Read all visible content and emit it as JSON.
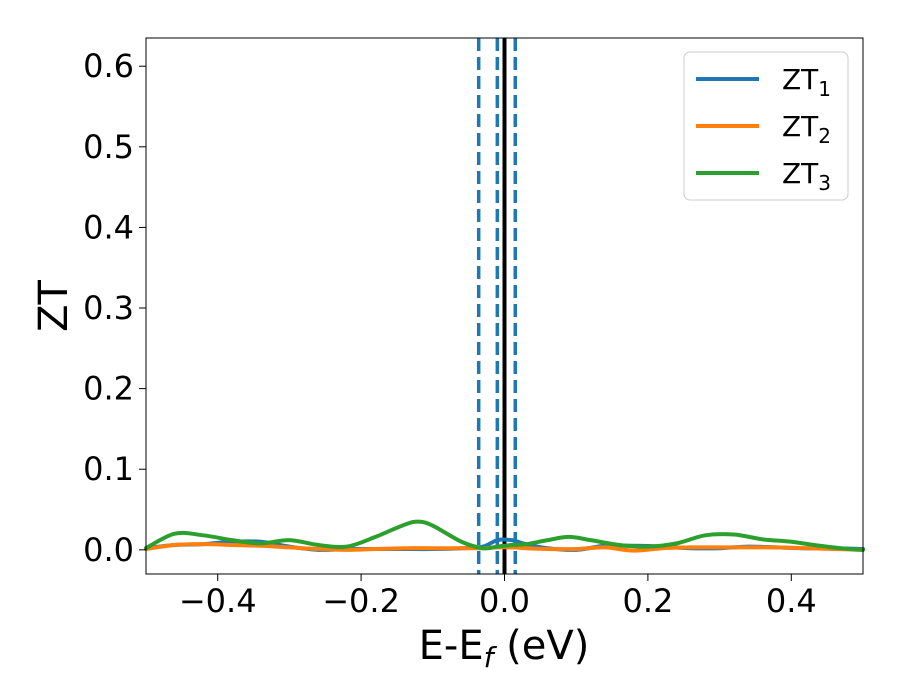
{
  "chart_data": {
    "type": "line",
    "xlabel": {
      "main": "E-E",
      "sub": "f",
      "tail": " (eV)"
    },
    "ylabel": "ZT",
    "xlim": [
      -0.5,
      0.5
    ],
    "ylim": [
      -0.03,
      0.635
    ],
    "x_ticks": [
      -0.4,
      -0.2,
      0.0,
      0.2,
      0.4
    ],
    "x_tick_labels": [
      "−0.4",
      "−0.2",
      "0.0",
      "0.2",
      "0.4"
    ],
    "y_ticks": [
      0.0,
      0.1,
      0.2,
      0.3,
      0.4,
      0.5,
      0.6
    ],
    "y_tick_labels": [
      "0.0",
      "0.1",
      "0.2",
      "0.3",
      "0.4",
      "0.5",
      "0.6"
    ],
    "grid": false,
    "legend_position": "top-right",
    "series": [
      {
        "name": "ZT",
        "name_sub": "1",
        "color": "#1f77b4",
        "x": [
          -0.5,
          -0.46,
          -0.42,
          -0.38,
          -0.34,
          -0.3,
          -0.26,
          -0.22,
          -0.18,
          -0.14,
          -0.1,
          -0.06,
          -0.03,
          -0.01,
          0.01,
          0.03,
          0.06,
          0.1,
          0.14,
          0.18,
          0.22,
          0.26,
          0.3,
          0.34,
          0.38,
          0.42,
          0.46,
          0.5
        ],
        "y": [
          0.002,
          0.006,
          0.007,
          0.01,
          0.01,
          0.004,
          0.0,
          0.001,
          0.001,
          0.001,
          0.001,
          0.002,
          0.004,
          0.012,
          0.012,
          0.007,
          0.002,
          0.0,
          0.005,
          0.005,
          0.004,
          0.002,
          0.002,
          0.004,
          0.003,
          0.002,
          0.002,
          0.001
        ]
      },
      {
        "name": "ZT",
        "name_sub": "2",
        "color": "#ff7f0e",
        "x": [
          -0.5,
          -0.46,
          -0.42,
          -0.38,
          -0.34,
          -0.3,
          -0.26,
          -0.22,
          -0.18,
          -0.14,
          -0.1,
          -0.06,
          -0.03,
          -0.01,
          0.01,
          0.03,
          0.06,
          0.1,
          0.14,
          0.18,
          0.22,
          0.26,
          0.3,
          0.34,
          0.38,
          0.42,
          0.46,
          0.5
        ],
        "y": [
          0.001,
          0.006,
          0.007,
          0.006,
          0.005,
          0.003,
          0.001,
          0.0,
          0.001,
          0.002,
          0.002,
          0.002,
          0.002,
          0.003,
          0.003,
          0.002,
          0.001,
          0.001,
          0.003,
          -0.001,
          0.002,
          0.003,
          0.003,
          0.003,
          0.003,
          0.002,
          0.001,
          0.0
        ]
      },
      {
        "name": "ZT",
        "name_sub": "3",
        "color": "#2ca02c",
        "x": [
          -0.5,
          -0.46,
          -0.42,
          -0.38,
          -0.34,
          -0.3,
          -0.26,
          -0.22,
          -0.18,
          -0.14,
          -0.12,
          -0.1,
          -0.06,
          -0.03,
          -0.01,
          0.01,
          0.03,
          0.06,
          0.09,
          0.12,
          0.16,
          0.2,
          0.24,
          0.28,
          0.32,
          0.36,
          0.4,
          0.44,
          0.48,
          0.5
        ],
        "y": [
          0.002,
          0.02,
          0.018,
          0.012,
          0.008,
          0.012,
          0.006,
          0.004,
          0.016,
          0.031,
          0.035,
          0.03,
          0.01,
          0.002,
          0.004,
          0.006,
          0.007,
          0.012,
          0.016,
          0.012,
          0.006,
          0.004,
          0.008,
          0.018,
          0.019,
          0.013,
          0.01,
          0.005,
          0.001,
          0.0
        ]
      }
    ],
    "vertical_lines": [
      {
        "x": -0.036,
        "color": "#1f77b4",
        "style": "dashed"
      },
      {
        "x": -0.01,
        "color": "#1f77b4",
        "style": "dashed"
      },
      {
        "x": 0.015,
        "color": "#1f77b4",
        "style": "dashed"
      },
      {
        "x": 0.0,
        "color": "#000000",
        "style": "solid"
      }
    ]
  }
}
